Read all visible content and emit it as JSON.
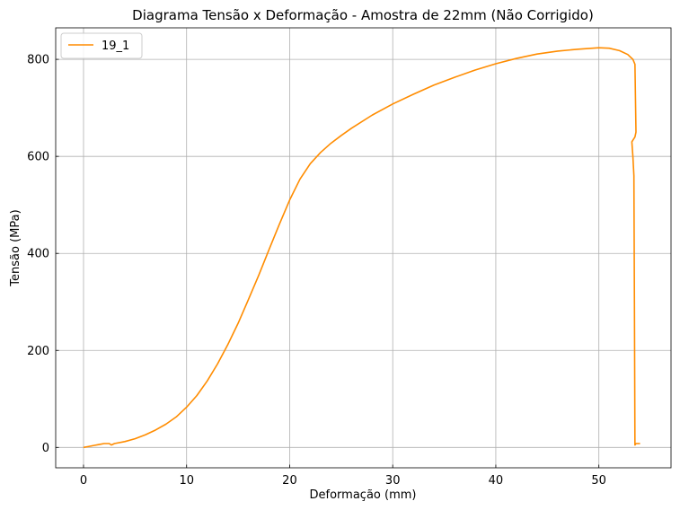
{
  "chart_data": {
    "type": "line",
    "title": "Diagrama Tensão x Deformação - Amostra de 22mm (Não Corrigido)",
    "xlabel": "Deformação (mm)",
    "ylabel": "Tensão (MPa)",
    "xlim": [
      -2.7,
      57
    ],
    "ylim": [
      -42,
      865
    ],
    "xticks": [
      0,
      10,
      20,
      30,
      40,
      50
    ],
    "yticks": [
      0,
      200,
      400,
      600,
      800
    ],
    "grid": true,
    "legend_position": "top-left",
    "series": [
      {
        "name": "19_1",
        "color": "#ff8c00",
        "x": [
          0,
          0.5,
          1,
          1.5,
          2,
          2.5,
          2.7,
          3,
          4,
          5,
          6,
          7,
          8,
          9,
          10,
          11,
          12,
          13,
          14,
          15,
          16,
          17,
          18,
          19,
          20,
          21,
          22,
          23,
          24,
          25,
          26,
          28,
          30,
          32,
          34,
          36,
          38,
          40,
          42,
          44,
          46,
          48,
          50,
          51,
          52,
          52.8,
          53.3,
          53.5,
          53.6,
          53.5,
          53.2,
          53.3,
          53.4,
          53.45,
          53.5,
          53.6,
          54
        ],
        "y": [
          0,
          2,
          4,
          6,
          8,
          8,
          5,
          8,
          12,
          18,
          26,
          36,
          48,
          63,
          83,
          107,
          137,
          172,
          212,
          256,
          305,
          355,
          408,
          460,
          510,
          553,
          585,
          608,
          627,
          643,
          658,
          685,
          708,
          728,
          747,
          763,
          778,
          791,
          802,
          811,
          817,
          821,
          824,
          823,
          818,
          810,
          800,
          790,
          650,
          640,
          630,
          600,
          560,
          300,
          5,
          8,
          8
        ]
      }
    ]
  }
}
